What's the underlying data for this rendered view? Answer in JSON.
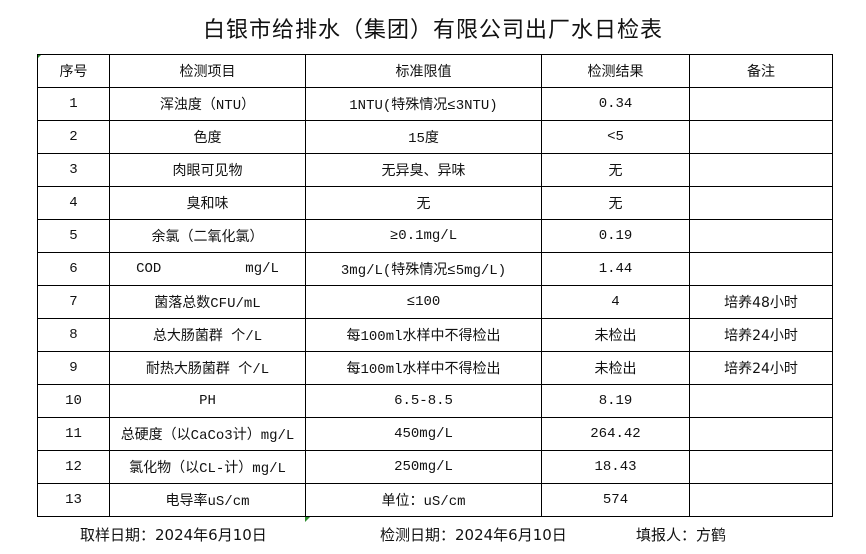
{
  "title": "白银市给排水（集团）有限公司出厂水日检表",
  "headers": [
    "序号",
    "检测项目",
    "标准限值",
    "检测结果",
    "备注"
  ],
  "rows": [
    {
      "no": "1",
      "item": "浑浊度（NTU）",
      "limit": "1NTU(特殊情况≤3NTU)",
      "result": "0.34",
      "note": ""
    },
    {
      "no": "2",
      "item": "色度",
      "limit": "15度",
      "result": "<5",
      "note": ""
    },
    {
      "no": "3",
      "item": "肉眼可见物",
      "limit": "无异臭、异味",
      "result": "无",
      "note": ""
    },
    {
      "no": "4",
      "item": "臭和味",
      "limit": "无",
      "result": "无",
      "note": ""
    },
    {
      "no": "5",
      "item": "余氯（二氧化氯）",
      "limit": "≥0.1mg/L",
      "result": "0.19",
      "note": ""
    },
    {
      "no": "6",
      "item": "COD          mg/L",
      "limit": "3mg/L(特殊情况≤5mg/L)",
      "result": "1.44",
      "note": ""
    },
    {
      "no": "7",
      "item": "菌落总数CFU/mL",
      "limit": "≤100",
      "result": "4",
      "note": "培养48小时"
    },
    {
      "no": "8",
      "item": "总大肠菌群 个/L",
      "limit": "每100ml水样中不得检出",
      "result": "未检出",
      "note": "培养24小时"
    },
    {
      "no": "9",
      "item": "耐热大肠菌群 个/L",
      "limit": "每100ml水样中不得检出",
      "result": "未检出",
      "note": "培养24小时"
    },
    {
      "no": "10",
      "item": "PH",
      "limit": "6.5-8.5",
      "result": "8.19",
      "note": ""
    },
    {
      "no": "11",
      "item": "总硬度（以CaCo3计）mg/L",
      "limit": "450mg/L",
      "result": "264.42",
      "note": ""
    },
    {
      "no": "12",
      "item": "氯化物（以CL-计）mg/L",
      "limit": "250mg/L",
      "result": "18.43",
      "note": ""
    },
    {
      "no": "13",
      "item": "电导率uS/cm",
      "limit": "单位：uS/cm",
      "result": "574",
      "note": ""
    }
  ],
  "footer": {
    "sample_date": "取样日期：2024年6月10日",
    "test_date": "检测日期：2024年6月10日",
    "reporter": "填报人：方鹤"
  }
}
